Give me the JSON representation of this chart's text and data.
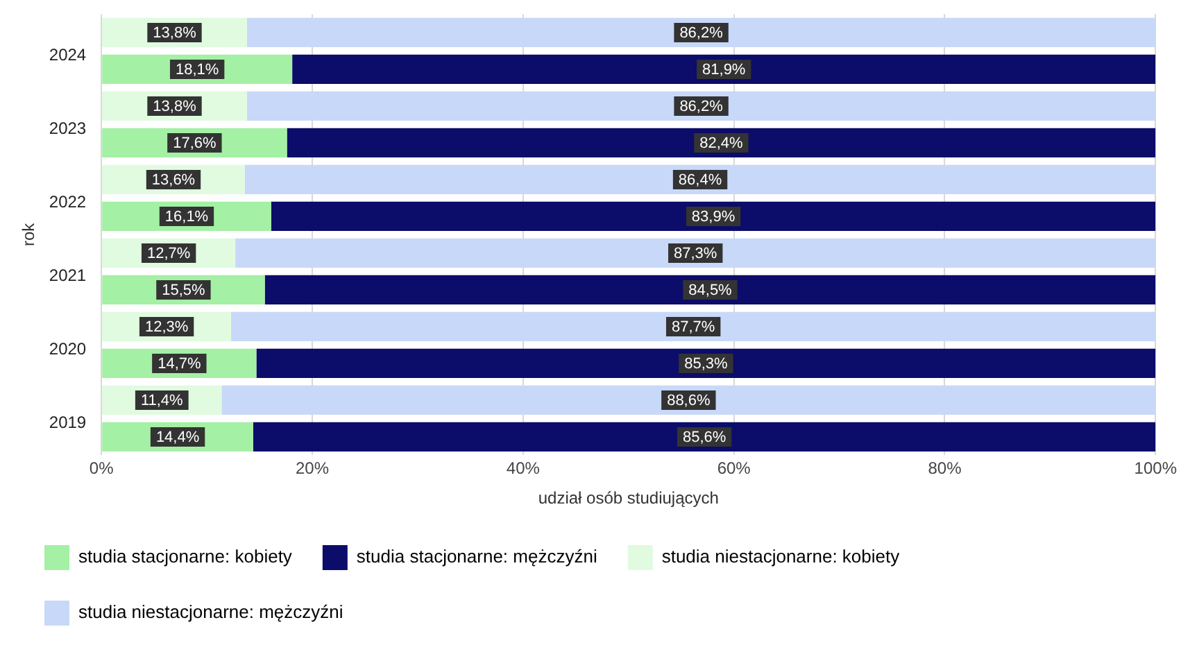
{
  "chart_data": {
    "type": "bar",
    "orientation": "horizontal",
    "stacked": true,
    "xlabel": "udział osób studiujących",
    "ylabel": "rok",
    "categories": [
      null,
      "2024",
      null,
      "2023",
      null,
      "2022",
      null,
      "2021",
      null,
      "2020",
      null,
      "2019"
    ],
    "xlim": [
      0,
      100
    ],
    "xticks": [
      {
        "value": 0,
        "label": "0%"
      },
      {
        "value": 20,
        "label": "20%"
      },
      {
        "value": 40,
        "label": "40%"
      },
      {
        "value": 60,
        "label": "60%"
      },
      {
        "value": 80,
        "label": "80%"
      },
      {
        "value": 100,
        "label": "100%"
      }
    ],
    "grid": "x",
    "legend": "bottom",
    "series": [
      {
        "name": "studia stacjonarne: kobiety",
        "color": "#a4f0a4",
        "values": [
          null,
          18.1,
          null,
          17.6,
          null,
          16.1,
          null,
          15.5,
          null,
          14.7,
          null,
          14.4
        ],
        "value_labels": [
          null,
          "18,1%",
          null,
          "17,6%",
          null,
          "16,1%",
          null,
          "15,5%",
          null,
          "14,7%",
          null,
          "14,4%"
        ]
      },
      {
        "name": "studia stacjonarne: mężczyźni",
        "color": "#0c0c6a",
        "values": [
          null,
          81.9,
          null,
          82.4,
          null,
          83.9,
          null,
          84.5,
          null,
          85.3,
          null,
          85.6
        ],
        "value_labels": [
          null,
          "81,9%",
          null,
          "82,4%",
          null,
          "83,9%",
          null,
          "84,5%",
          null,
          "85,3%",
          null,
          "85,6%"
        ]
      },
      {
        "name": "studia niestacjonarne: kobiety",
        "color": "#e0fbe0",
        "values": [
          13.8,
          null,
          13.8,
          null,
          13.6,
          null,
          12.7,
          null,
          12.3,
          null,
          11.4,
          null
        ],
        "value_labels": [
          "13,8%",
          null,
          "13,8%",
          null,
          "13,6%",
          null,
          "12,7%",
          null,
          "12,3%",
          null,
          "11,4%",
          null
        ]
      },
      {
        "name": "studia niestacjonarne: mężczyźni",
        "color": "#c8d8f8",
        "values": [
          86.2,
          null,
          86.2,
          null,
          86.4,
          null,
          87.3,
          null,
          87.7,
          null,
          88.6,
          null
        ],
        "value_labels": [
          "86,2%",
          null,
          "86,2%",
          null,
          "86,4%",
          null,
          "87,3%",
          null,
          "87,7%",
          null,
          "88,6%",
          null
        ]
      }
    ]
  }
}
